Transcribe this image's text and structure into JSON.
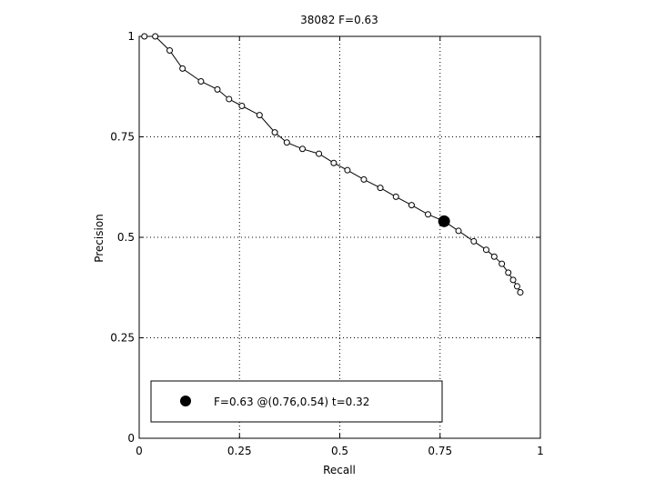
{
  "chart_data": {
    "type": "line",
    "title": "38082 F=0.63",
    "xlabel": "Recall",
    "ylabel": "Precision",
    "xlim": [
      0,
      1
    ],
    "ylim": [
      0,
      1
    ],
    "grid": true,
    "x_ticks": [
      0,
      0.25,
      0.5,
      0.75,
      1
    ],
    "x_tick_labels": [
      "0",
      "0.25",
      "0.5",
      "0.75",
      "1"
    ],
    "y_ticks": [
      0,
      0.25,
      0.5,
      0.75,
      1
    ],
    "y_tick_labels": [
      "0",
      "0.25",
      "0.5",
      "0.75",
      "1"
    ],
    "series": [
      {
        "marker": "open-circle",
        "color": "#000000",
        "x": [
          0.013,
          0.04,
          0.076,
          0.108,
          0.154,
          0.195,
          0.224,
          0.256,
          0.3,
          0.338,
          0.368,
          0.407,
          0.448,
          0.485,
          0.519,
          0.56,
          0.601,
          0.64,
          0.679,
          0.72,
          0.76,
          0.796,
          0.834,
          0.865,
          0.885,
          0.904,
          0.92,
          0.932,
          0.942,
          0.95
        ],
        "y": [
          1.0,
          1.0,
          0.965,
          0.92,
          0.888,
          0.868,
          0.844,
          0.827,
          0.804,
          0.761,
          0.736,
          0.72,
          0.708,
          0.685,
          0.667,
          0.644,
          0.623,
          0.601,
          0.58,
          0.557,
          0.54,
          0.516,
          0.49,
          0.469,
          0.452,
          0.434,
          0.412,
          0.394,
          0.378,
          0.363
        ]
      }
    ],
    "highlight_point": {
      "x": 0.76,
      "y": 0.54,
      "marker": "filled-circle",
      "color": "#000000"
    },
    "legend": {
      "placement": "bottom-left",
      "text": "F=0.63 @(0.76,0.54) t=0.32"
    }
  }
}
